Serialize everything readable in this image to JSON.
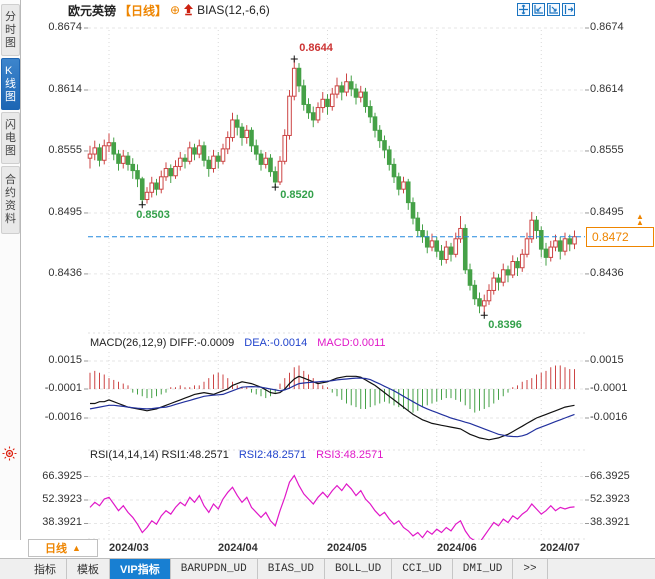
{
  "header": {
    "symbol": "欧元英镑",
    "period_tag": "【日线】",
    "plus_icon": "⊕",
    "pin_icon": "red-up-arrow",
    "indicator": "BIAS(12,-6,6)"
  },
  "toolbar_icons": [
    {
      "name": "crosshair-icon"
    },
    {
      "name": "fit-left-axis-icon"
    },
    {
      "name": "fit-right-axis-icon"
    },
    {
      "name": "pan-right-icon"
    }
  ],
  "sidebar": {
    "items": [
      {
        "label": "分时图",
        "active": false
      },
      {
        "label": "K线图",
        "active": true
      },
      {
        "label": "闪电图",
        "active": false
      },
      {
        "label": "合约资料",
        "active": false
      }
    ]
  },
  "price_axis": {
    "left": [
      "0.8674",
      "0.8614",
      "0.8555",
      "0.8495",
      "0.8436"
    ],
    "right": [
      "0.8674",
      "0.8614",
      "0.8555",
      "0.8495",
      "0.8436"
    ]
  },
  "current_price": {
    "value": "0.8472"
  },
  "macd_panel": {
    "title": "MACD(26,12,9) DIFF:-0.0009",
    "dea_label": "DEA:-0.0014",
    "macd_label": "MACD:0.0011",
    "axis_left": [
      "0.0015",
      "-0.0001",
      "-0.0016"
    ],
    "axis_right": [
      "0.0015",
      "-0.0001",
      "-0.0016"
    ]
  },
  "rsi_panel": {
    "title": "RSI(14,14,14) RSI1:48.2571",
    "rsi2_label": "RSI2:48.2571",
    "rsi3_label": "RSI3:48.2571",
    "axis_left": [
      "66.3925",
      "52.3923",
      "38.3921"
    ],
    "axis_right": [
      "66.3925",
      "52.3923",
      "38.3921"
    ]
  },
  "period_button": {
    "label": "日线",
    "arrow": "▲"
  },
  "bottom_tabs": [
    {
      "label": "指标",
      "active": false,
      "mono": false
    },
    {
      "label": "模板",
      "active": false,
      "mono": false
    },
    {
      "label": "VIP指标",
      "active": true,
      "mono": false
    },
    {
      "label": "BARUPDN_UD",
      "active": false,
      "mono": true
    },
    {
      "label": "BIAS_UD",
      "active": false,
      "mono": true
    },
    {
      "label": "BOLL_UD",
      "active": false,
      "mono": true
    },
    {
      "label": "CCI_UD",
      "active": false,
      "mono": true
    },
    {
      "label": "DMI_UD",
      "active": false,
      "mono": true
    },
    {
      "label": "&gt;&gt;",
      "active": false,
      "mono": true
    }
  ],
  "colors": {
    "up": "#cc4444",
    "down": "#45a147",
    "diff_line": "#111111",
    "dea_line": "#22319e",
    "rsi_line": "#e018c8",
    "current_line": "#2288dd",
    "accent_orange": "#ee8500",
    "grid": "#e6e6e6",
    "vgrid": "#d9d9d9",
    "label_red": "#cc3333",
    "label_green": "#33a04a"
  },
  "chart_data": {
    "type": "candlestick",
    "title": "欧元英镑 日线 (EUR/GBP daily)",
    "x_axis": {
      "labels": [
        "2024/03",
        "2024/04",
        "2024/05",
        "2024/06",
        "2024/07"
      ],
      "tick_indices": [
        4,
        27,
        50,
        73,
        95
      ]
    },
    "price_axis_values": [
      0.8674,
      0.8614,
      0.8555,
      0.8495,
      0.8436
    ],
    "current_price": 0.8472,
    "markers": {
      "high": {
        "index": 43,
        "price": 0.8644,
        "label": "0.8644"
      },
      "low1": {
        "index": 11,
        "price": 0.8503,
        "label": "0.8503"
      },
      "low2": {
        "index": 39,
        "price": 0.852,
        "label": "0.8520"
      },
      "low3": {
        "index": 83,
        "price": 0.8396,
        "label": "0.8396"
      }
    },
    "candles_ohlc": [
      [
        0.8548,
        0.856,
        0.8538,
        0.8552
      ],
      [
        0.8552,
        0.8565,
        0.8546,
        0.8558
      ],
      [
        0.8558,
        0.8562,
        0.854,
        0.8546
      ],
      [
        0.8546,
        0.8566,
        0.8542,
        0.856
      ],
      [
        0.856,
        0.8572,
        0.8554,
        0.8563
      ],
      [
        0.8563,
        0.8568,
        0.8546,
        0.8552
      ],
      [
        0.8552,
        0.8556,
        0.8536,
        0.8543
      ],
      [
        0.8543,
        0.8556,
        0.8538,
        0.855
      ],
      [
        0.855,
        0.8554,
        0.8536,
        0.8542
      ],
      [
        0.8542,
        0.8548,
        0.8528,
        0.8536
      ],
      [
        0.8536,
        0.8542,
        0.852,
        0.8528
      ],
      [
        0.8528,
        0.853,
        0.8503,
        0.8508
      ],
      [
        0.8508,
        0.852,
        0.8504,
        0.8515
      ],
      [
        0.8515,
        0.853,
        0.851,
        0.8524
      ],
      [
        0.8524,
        0.8528,
        0.8512,
        0.8518
      ],
      [
        0.8518,
        0.8536,
        0.8514,
        0.853
      ],
      [
        0.853,
        0.8544,
        0.8526,
        0.8538
      ],
      [
        0.8538,
        0.8542,
        0.8524,
        0.8531
      ],
      [
        0.8531,
        0.8546,
        0.8528,
        0.854
      ],
      [
        0.854,
        0.8554,
        0.8536,
        0.8548
      ],
      [
        0.8548,
        0.8552,
        0.8538,
        0.8545
      ],
      [
        0.8545,
        0.8564,
        0.8542,
        0.8558
      ],
      [
        0.8558,
        0.8562,
        0.8546,
        0.8552
      ],
      [
        0.8552,
        0.8566,
        0.8548,
        0.856
      ],
      [
        0.856,
        0.8564,
        0.854,
        0.8546
      ],
      [
        0.8546,
        0.855,
        0.853,
        0.8538
      ],
      [
        0.8538,
        0.8556,
        0.8534,
        0.855
      ],
      [
        0.855,
        0.8554,
        0.8538,
        0.8545
      ],
      [
        0.8545,
        0.8562,
        0.8542,
        0.8557
      ],
      [
        0.8557,
        0.8574,
        0.8552,
        0.8568
      ],
      [
        0.8568,
        0.8592,
        0.8564,
        0.8585
      ],
      [
        0.8585,
        0.859,
        0.857,
        0.8578
      ],
      [
        0.8578,
        0.8582,
        0.856,
        0.8568
      ],
      [
        0.8568,
        0.858,
        0.8562,
        0.8575
      ],
      [
        0.8575,
        0.8578,
        0.8554,
        0.856
      ],
      [
        0.856,
        0.8566,
        0.8546,
        0.8552
      ],
      [
        0.8552,
        0.8556,
        0.8536,
        0.8542
      ],
      [
        0.8542,
        0.8554,
        0.8538,
        0.8548
      ],
      [
        0.8548,
        0.8552,
        0.853,
        0.8535
      ],
      [
        0.8535,
        0.854,
        0.852,
        0.8525
      ],
      [
        0.8525,
        0.855,
        0.8522,
        0.8545
      ],
      [
        0.8545,
        0.8576,
        0.8542,
        0.857
      ],
      [
        0.857,
        0.8614,
        0.8566,
        0.8608
      ],
      [
        0.8608,
        0.8644,
        0.8604,
        0.8635
      ],
      [
        0.8635,
        0.864,
        0.8612,
        0.8618
      ],
      [
        0.8618,
        0.8624,
        0.8594,
        0.86
      ],
      [
        0.86,
        0.8606,
        0.8586,
        0.8592
      ],
      [
        0.8592,
        0.8598,
        0.8578,
        0.8585
      ],
      [
        0.8585,
        0.8602,
        0.8582,
        0.8597
      ],
      [
        0.8597,
        0.8612,
        0.8592,
        0.8605
      ],
      [
        0.8605,
        0.861,
        0.859,
        0.8598
      ],
      [
        0.8598,
        0.8616,
        0.8594,
        0.861
      ],
      [
        0.861,
        0.8626,
        0.8606,
        0.8618
      ],
      [
        0.8618,
        0.8622,
        0.8604,
        0.8612
      ],
      [
        0.8612,
        0.863,
        0.8608,
        0.8622
      ],
      [
        0.8622,
        0.8628,
        0.8608,
        0.8615
      ],
      [
        0.8615,
        0.862,
        0.86,
        0.8607
      ],
      [
        0.8607,
        0.8618,
        0.8602,
        0.8612
      ],
      [
        0.8612,
        0.8616,
        0.8592,
        0.8598
      ],
      [
        0.8598,
        0.8604,
        0.8582,
        0.8588
      ],
      [
        0.8588,
        0.8592,
        0.8568,
        0.8575
      ],
      [
        0.8575,
        0.858,
        0.8558,
        0.8565
      ],
      [
        0.8565,
        0.857,
        0.8548,
        0.8556
      ],
      [
        0.8556,
        0.856,
        0.8536,
        0.8542
      ],
      [
        0.8542,
        0.8548,
        0.8524,
        0.853
      ],
      [
        0.853,
        0.8534,
        0.8512,
        0.8518
      ],
      [
        0.8518,
        0.853,
        0.8514,
        0.8525
      ],
      [
        0.8525,
        0.8528,
        0.8498,
        0.8505
      ],
      [
        0.8505,
        0.851,
        0.8484,
        0.849
      ],
      [
        0.849,
        0.8496,
        0.8472,
        0.8478
      ],
      [
        0.8478,
        0.8484,
        0.8466,
        0.8472
      ],
      [
        0.8472,
        0.8478,
        0.8456,
        0.8462
      ],
      [
        0.8462,
        0.8475,
        0.8458,
        0.8468
      ],
      [
        0.8468,
        0.8472,
        0.8452,
        0.8458
      ],
      [
        0.8458,
        0.8464,
        0.8444,
        0.845
      ],
      [
        0.845,
        0.8468,
        0.8446,
        0.8462
      ],
      [
        0.8462,
        0.8466,
        0.8448,
        0.8455
      ],
      [
        0.8455,
        0.8476,
        0.8452,
        0.847
      ],
      [
        0.847,
        0.8492,
        0.8466,
        0.848
      ],
      [
        0.848,
        0.8484,
        0.8436,
        0.844
      ],
      [
        0.844,
        0.8446,
        0.842,
        0.8425
      ],
      [
        0.8425,
        0.843,
        0.8406,
        0.8412
      ],
      [
        0.8412,
        0.8418,
        0.8398,
        0.8405
      ],
      [
        0.8405,
        0.8416,
        0.8396,
        0.841
      ],
      [
        0.841,
        0.8426,
        0.8406,
        0.842
      ],
      [
        0.842,
        0.8438,
        0.8416,
        0.8432
      ],
      [
        0.8432,
        0.8436,
        0.842,
        0.8428
      ],
      [
        0.8428,
        0.8446,
        0.8424,
        0.844
      ],
      [
        0.844,
        0.8444,
        0.8428,
        0.8435
      ],
      [
        0.8435,
        0.8454,
        0.8432,
        0.8448
      ],
      [
        0.8448,
        0.8452,
        0.8434,
        0.8442
      ],
      [
        0.8442,
        0.846,
        0.8438,
        0.8455
      ],
      [
        0.8455,
        0.8476,
        0.8452,
        0.847
      ],
      [
        0.847,
        0.8496,
        0.8466,
        0.8488
      ],
      [
        0.8488,
        0.8492,
        0.847,
        0.8478
      ],
      [
        0.8478,
        0.8482,
        0.8452,
        0.846
      ],
      [
        0.846,
        0.8466,
        0.8444,
        0.8452
      ],
      [
        0.8452,
        0.8468,
        0.8448,
        0.8462
      ],
      [
        0.8462,
        0.8474,
        0.8458,
        0.8468
      ],
      [
        0.8468,
        0.8472,
        0.845,
        0.8458
      ],
      [
        0.8458,
        0.8476,
        0.8454,
        0.847
      ],
      [
        0.847,
        0.8474,
        0.8458,
        0.8465
      ],
      [
        0.8465,
        0.8478,
        0.846,
        0.8472
      ]
    ],
    "macd": {
      "params": "26,12,9",
      "diff": -0.0009,
      "dea": -0.0014,
      "macd": 0.0011,
      "axis_values": [
        0.0015,
        -0.0001,
        -0.0016
      ],
      "hist_x1e4": [
        9,
        10,
        9,
        8,
        6,
        5,
        4,
        3,
        2,
        -2,
        -3,
        -4,
        -5,
        -5,
        -4,
        -3,
        -2,
        1,
        1,
        2,
        1,
        1,
        2,
        2,
        4,
        6,
        8,
        9,
        8,
        6,
        4,
        2,
        1,
        1,
        -2,
        -3,
        -4,
        -5,
        -4,
        -2,
        3,
        6,
        9,
        12,
        13,
        10,
        8,
        6,
        4,
        2,
        1,
        -2,
        -4,
        -6,
        -8,
        -9,
        -10,
        -11,
        -11,
        -10,
        -9,
        -8,
        -7,
        -8,
        -9,
        -10,
        -11,
        -12,
        -13,
        -12,
        -10,
        -9,
        -8,
        -7,
        -6,
        -5,
        -5,
        -6,
        -7,
        -9,
        -11,
        -13,
        -12,
        -11,
        -10,
        -8,
        -6,
        -4,
        -2,
        1,
        2,
        4,
        5,
        6,
        8,
        9,
        10,
        12,
        13,
        13,
        12,
        11,
        11
      ],
      "diff_x1e4": [
        -8,
        -8,
        -7,
        -7,
        -6,
        -7,
        -8,
        -9,
        -10,
        -10.5,
        -11,
        -11.5,
        -12,
        -11.5,
        -11,
        -10,
        -9,
        -8,
        -7,
        -6,
        -5,
        -4,
        -3,
        -2.5,
        -2,
        -2.5,
        -3,
        -2,
        -1,
        0,
        2,
        3,
        4,
        3.5,
        3,
        2,
        1,
        -0.5,
        -2,
        -2.5,
        -2,
        0,
        3,
        5.5,
        7,
        6,
        5,
        4,
        3,
        3.5,
        4,
        5,
        6,
        6.5,
        7,
        7,
        7,
        6.5,
        5,
        3.5,
        2,
        0,
        -2,
        -4,
        -6,
        -8,
        -10,
        -12,
        -14,
        -15.5,
        -17,
        -18,
        -19,
        -19.5,
        -20,
        -20.5,
        -21,
        -21.5,
        -22,
        -23.5,
        -25,
        -26,
        -27,
        -27.5,
        -28,
        -27.5,
        -27,
        -26,
        -25,
        -23.5,
        -22,
        -20.5,
        -19,
        -17.5,
        -16,
        -15,
        -14,
        -13,
        -12,
        -11,
        -10,
        -9.5,
        -9
      ],
      "dea_x1e4": [
        -11,
        -10.5,
        -10,
        -9.5,
        -9,
        -9,
        -9.3,
        -9.6,
        -10,
        -10.3,
        -10.6,
        -10.8,
        -11,
        -10.8,
        -10.5,
        -10.2,
        -10,
        -9.3,
        -8.5,
        -7.8,
        -7,
        -6.3,
        -5.5,
        -4.8,
        -4,
        -3.7,
        -3.4,
        -3.2,
        -3,
        -2,
        -1,
        0,
        1,
        1.2,
        1.3,
        1.2,
        1,
        0.5,
        0,
        -0.5,
        -1,
        -0.5,
        0.5,
        1.8,
        3,
        3.3,
        3.6,
        3.8,
        4,
        4.2,
        4.3,
        4.6,
        5,
        5.3,
        5.5,
        5.8,
        6,
        6,
        5.8,
        5.2,
        4,
        2.8,
        1.5,
        0.3,
        -1,
        -2.5,
        -4,
        -5.5,
        -7,
        -8.5,
        -9.8,
        -11,
        -12,
        -13,
        -14,
        -15,
        -16,
        -16.8,
        -17.5,
        -18.3,
        -19,
        -20,
        -21,
        -22,
        -23,
        -24,
        -25,
        -25.5,
        -26,
        -26.2,
        -26.3,
        -25.8,
        -25,
        -23.5,
        -22,
        -21,
        -20,
        -19,
        -18,
        -17,
        -16,
        -15,
        -14
      ]
    },
    "rsi": {
      "params": "14,14,14",
      "rsi1": 48.2571,
      "rsi2": 48.2571,
      "rsi3": 48.2571,
      "axis_values": [
        66.3925,
        52.3923,
        38.3921
      ],
      "values": [
        48,
        51,
        49,
        53,
        54,
        50,
        46,
        49,
        45,
        42,
        38,
        33,
        36,
        40,
        38,
        43,
        46,
        44,
        48,
        51,
        49,
        54,
        51,
        55,
        49,
        45,
        50,
        47,
        53,
        57,
        60,
        55,
        51,
        54,
        48,
        45,
        42,
        45,
        40,
        37,
        46,
        54,
        63,
        67,
        61,
        56,
        53,
        50,
        54,
        57,
        54,
        58,
        61,
        58,
        62,
        59,
        55,
        58,
        53,
        50,
        46,
        43,
        45,
        41,
        38,
        40,
        36,
        34,
        31,
        33,
        30,
        34,
        32,
        35,
        33,
        36,
        34,
        38,
        40,
        34,
        30,
        28,
        27,
        31,
        35,
        39,
        37,
        41,
        39,
        43,
        41,
        44,
        46,
        50,
        47,
        44,
        46,
        49,
        46,
        48,
        47,
        48,
        48.26
      ]
    }
  }
}
